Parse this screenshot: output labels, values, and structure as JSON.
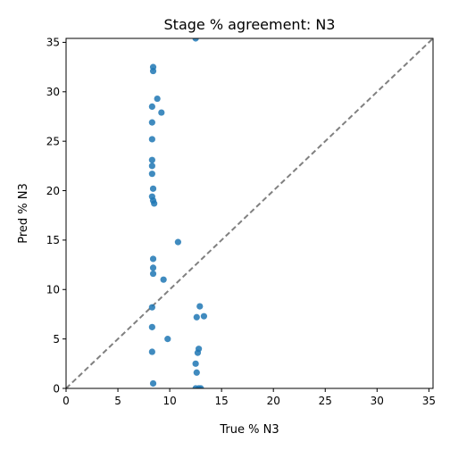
{
  "chart_data": {
    "type": "scatter",
    "title": "Stage % agreement: N3",
    "xlabel": "True % N3",
    "ylabel": "Pred % N3",
    "xlim": [
      0,
      35.4
    ],
    "ylim": [
      0,
      35.4
    ],
    "xticks": [
      0,
      5,
      10,
      15,
      20,
      25,
      30,
      35
    ],
    "yticks": [
      0,
      5,
      10,
      15,
      20,
      25,
      30,
      35
    ],
    "grid": false,
    "reference_line": {
      "x": [
        0,
        35.4
      ],
      "y": [
        0,
        35.4
      ],
      "style": "dashed",
      "color": "#808080"
    },
    "point_color": "#1f77b4",
    "points": [
      {
        "x": 12.5,
        "y": 35.4
      },
      {
        "x": 8.4,
        "y": 32.5
      },
      {
        "x": 8.4,
        "y": 32.1
      },
      {
        "x": 8.8,
        "y": 29.3
      },
      {
        "x": 8.3,
        "y": 28.5
      },
      {
        "x": 9.2,
        "y": 27.9
      },
      {
        "x": 8.3,
        "y": 26.9
      },
      {
        "x": 8.3,
        "y": 25.2
      },
      {
        "x": 8.3,
        "y": 23.1
      },
      {
        "x": 8.3,
        "y": 22.5
      },
      {
        "x": 8.3,
        "y": 21.7
      },
      {
        "x": 8.4,
        "y": 20.2
      },
      {
        "x": 8.3,
        "y": 19.4
      },
      {
        "x": 8.4,
        "y": 19.0
      },
      {
        "x": 8.5,
        "y": 18.7
      },
      {
        "x": 10.8,
        "y": 14.8
      },
      {
        "x": 8.4,
        "y": 13.1
      },
      {
        "x": 8.4,
        "y": 12.2
      },
      {
        "x": 8.4,
        "y": 11.6
      },
      {
        "x": 9.4,
        "y": 11.0
      },
      {
        "x": 8.3,
        "y": 8.2
      },
      {
        "x": 12.9,
        "y": 8.3
      },
      {
        "x": 12.6,
        "y": 7.2
      },
      {
        "x": 13.3,
        "y": 7.3
      },
      {
        "x": 8.3,
        "y": 6.2
      },
      {
        "x": 9.8,
        "y": 5.0
      },
      {
        "x": 12.8,
        "y": 4.0
      },
      {
        "x": 12.7,
        "y": 3.6
      },
      {
        "x": 8.3,
        "y": 3.7
      },
      {
        "x": 12.5,
        "y": 2.5
      },
      {
        "x": 12.6,
        "y": 1.6
      },
      {
        "x": 8.4,
        "y": 0.5
      },
      {
        "x": 12.5,
        "y": 0.0
      },
      {
        "x": 12.8,
        "y": 0.0
      },
      {
        "x": 13.0,
        "y": 0.0
      }
    ]
  }
}
